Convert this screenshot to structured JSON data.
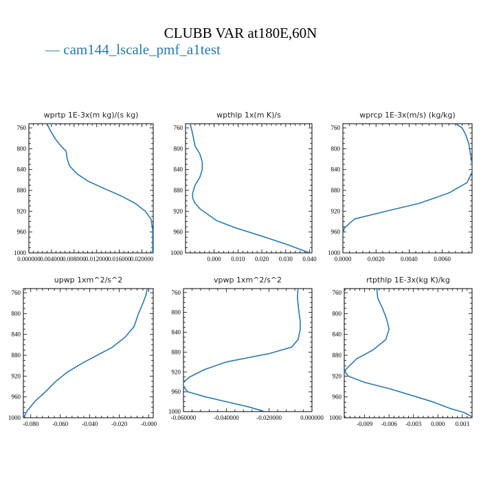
{
  "title": "CLUBB VAR at180E,60N",
  "legend": {
    "dash": "—",
    "label": "cam144_lscale_pmf_a1test",
    "color": "#2878b0"
  },
  "line_color": "#2878b0",
  "chart_data": [
    {
      "type": "line",
      "title": "wprtp  1E-3x(m kg)/(s kg)",
      "xlim": [
        0.0,
        0.022
      ],
      "ylim": [
        1000,
        752
      ],
      "xticks": [
        0.0,
        0.004,
        0.008,
        0.012,
        0.016,
        0.02
      ],
      "xtick_labels": [
        "0.000000",
        "0.004000",
        "0.008000",
        "0.012000",
        "0.016000",
        "0.020000"
      ],
      "yticks": [
        760,
        800,
        840,
        880,
        920,
        960,
        1000
      ],
      "series": [
        {
          "x": [
            0.0032,
            0.0038,
            0.0046,
            0.0056,
            0.0066,
            0.0068,
            0.0072,
            0.0085,
            0.0104,
            0.013,
            0.0162,
            0.0188,
            0.0206,
            0.0216,
            0.0219,
            0.0219
          ],
          "y": [
            752,
            765,
            780,
            794,
            805,
            820,
            833,
            848,
            862,
            875,
            890,
            905,
            920,
            935,
            955,
            1000
          ]
        }
      ]
    },
    {
      "type": "line",
      "title": "wpthlp  1x(m K)/s",
      "xlim": [
        -0.012,
        0.041
      ],
      "ylim": [
        1000,
        752
      ],
      "xticks": [
        0.0,
        0.01,
        0.02,
        0.03,
        0.04
      ],
      "xtick_labels": [
        "0.000",
        "0.010",
        "0.020",
        "0.030",
        "0.040"
      ],
      "yticks": [
        760,
        800,
        840,
        880,
        920,
        960,
        1000
      ],
      "series": [
        {
          "x": [
            -0.01,
            -0.009,
            -0.008,
            -0.006,
            -0.005,
            -0.005,
            -0.006,
            -0.008,
            -0.009,
            -0.009,
            -0.008,
            -0.006,
            -0.003,
            0.001,
            0.009,
            0.02,
            0.03,
            0.04
          ],
          "y": [
            752,
            772,
            795,
            810,
            825,
            840,
            855,
            870,
            885,
            895,
            905,
            915,
            925,
            938,
            952,
            968,
            983,
            1000
          ]
        }
      ]
    },
    {
      "type": "line",
      "title": "wprcp  1E-3x(m/s) (kg/kg)",
      "xlim": [
        0.0,
        0.0078
      ],
      "ylim": [
        1000,
        752
      ],
      "xticks": [
        0.0,
        0.002,
        0.004,
        0.006
      ],
      "xtick_labels": [
        "0.0000",
        "0.0020",
        "0.0040",
        "0.0060"
      ],
      "yticks": [
        760,
        800,
        840,
        880,
        920,
        960,
        1000
      ],
      "series": [
        {
          "x": [
            0.0068,
            0.0072,
            0.0074,
            0.0076,
            0.0077,
            0.0078,
            0.0078,
            0.0075,
            0.0064,
            0.0046,
            0.0026,
            0.0007,
            0.0001,
            0.0
          ],
          "y": [
            752,
            760,
            772,
            790,
            810,
            830,
            845,
            865,
            885,
            905,
            920,
            935,
            952,
            962
          ]
        }
      ]
    },
    {
      "type": "line",
      "title": "upwp  1xm^2/s^2",
      "xlim": [
        -0.085,
        0.003
      ],
      "ylim": [
        1000,
        752
      ],
      "xticks": [
        -0.08,
        -0.06,
        -0.04,
        -0.02,
        0.0
      ],
      "xtick_labels": [
        "-0.080",
        "-0.060",
        "-0.040",
        "-0.020",
        "-0.000"
      ],
      "yticks": [
        760,
        800,
        840,
        880,
        920,
        960,
        1000
      ],
      "series": [
        {
          "x": [
            -0.001,
            -0.002,
            -0.004,
            -0.007,
            -0.01,
            -0.016,
            -0.025,
            -0.035,
            -0.045,
            -0.055,
            -0.063,
            -0.07,
            -0.077,
            -0.082,
            -0.085
          ],
          "y": [
            752,
            765,
            780,
            800,
            825,
            845,
            865,
            880,
            895,
            912,
            930,
            950,
            968,
            985,
            1000
          ]
        }
      ]
    },
    {
      "type": "line",
      "title": "vpwp  1xm^2/s^2",
      "xlim": [
        -0.06,
        0.0
      ],
      "ylim": [
        1000,
        752
      ],
      "xticks": [
        -0.06,
        -0.04,
        -0.02,
        0.0
      ],
      "xtick_labels": [
        "-0.060000",
        "-0.040000",
        "-0.020000",
        "0.000000"
      ],
      "yticks": [
        760,
        800,
        840,
        880,
        920,
        960,
        1000
      ],
      "series": [
        {
          "x": [
            -0.0065,
            -0.0068,
            -0.0062,
            -0.0055,
            -0.0055,
            -0.0065,
            -0.0095,
            -0.02,
            -0.04,
            -0.05,
            -0.057,
            -0.06,
            -0.06,
            -0.058,
            -0.05,
            -0.04,
            -0.03,
            -0.022
          ],
          "y": [
            752,
            770,
            795,
            818,
            835,
            855,
            870,
            883,
            900,
            915,
            930,
            940,
            950,
            960,
            970,
            980,
            990,
            1000
          ]
        }
      ]
    },
    {
      "type": "line",
      "title": "rtpthlp  1E-3x(kg K)/kg",
      "xlim": [
        -0.0115,
        0.0042
      ],
      "ylim": [
        1000,
        752
      ],
      "xticks": [
        -0.009,
        -0.006,
        -0.003,
        0.0,
        0.003
      ],
      "xtick_labels": [
        "-0.009",
        "-0.006",
        "-0.003",
        "0.000",
        "0.003"
      ],
      "yticks": [
        760,
        800,
        840,
        880,
        920,
        960,
        1000
      ],
      "series": [
        {
          "x": [
            -0.0075,
            -0.0074,
            -0.0068,
            -0.0063,
            -0.006,
            -0.0064,
            -0.008,
            -0.01,
            -0.0115,
            -0.011,
            -0.009,
            -0.006,
            -0.003,
            -0.0005,
            0.0015,
            0.0032,
            0.004,
            0.0042
          ],
          "y": [
            752,
            770,
            790,
            810,
            830,
            850,
            870,
            887,
            910,
            920,
            932,
            944,
            958,
            970,
            982,
            990,
            996,
            1000
          ]
        }
      ]
    }
  ]
}
